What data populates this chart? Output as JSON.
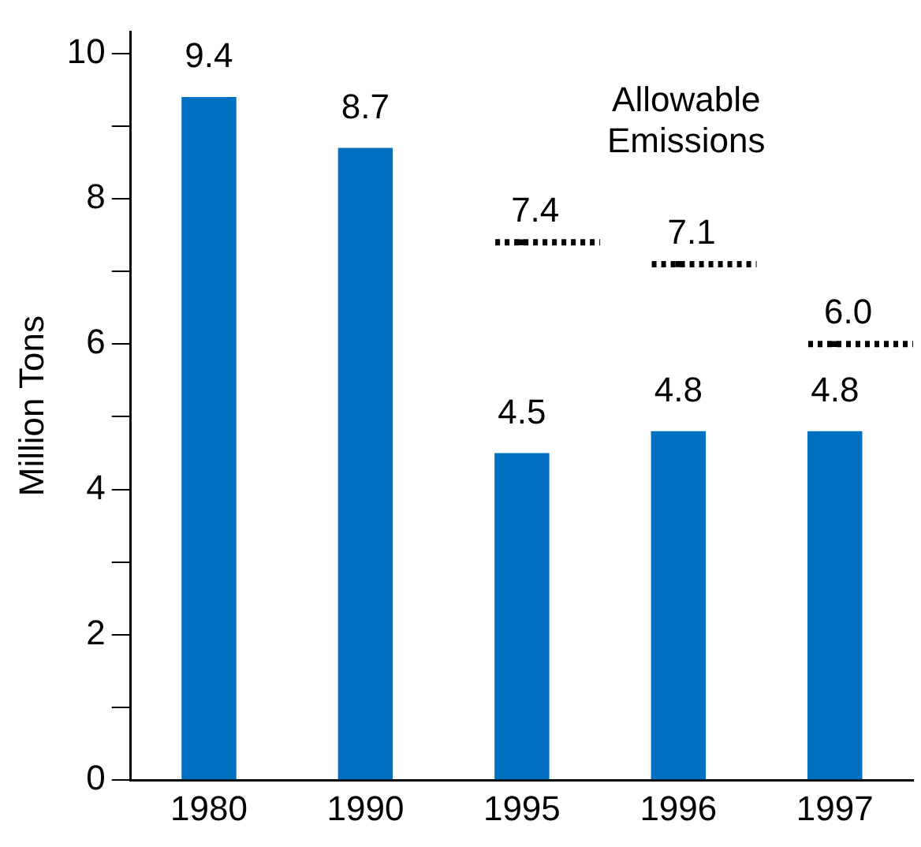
{
  "chart_data": {
    "type": "bar",
    "ylabel": "Million Tons",
    "categories": [
      "1980",
      "1990",
      "1995",
      "1996",
      "1997"
    ],
    "series": [
      {
        "color": "#0070c0",
        "values": [
          9.4,
          8.7,
          4.5,
          4.8,
          4.8
        ]
      },
      {
        "type": "scatter",
        "name": "Allowable Emissions",
        "color": "#000000",
        "line_style": "dotted",
        "values": [
          null,
          null,
          7.4,
          7.1,
          6.0
        ],
        "value_labels": [
          null,
          null,
          "7.4",
          "7.1",
          "6.0"
        ]
      }
    ],
    "ylim": [
      0,
      10.3
    ],
    "yticks": [
      0,
      {
        "value": 1,
        "label": null
      },
      2,
      {
        "value": 3,
        "label": null
      },
      4,
      {
        "value": 5,
        "label": null
      },
      6,
      {
        "value": 7,
        "label": null
      },
      8,
      {
        "value": 9,
        "label": null
      },
      10
    ],
    "grid": false,
    "legend": false,
    "data_labels": true
  }
}
